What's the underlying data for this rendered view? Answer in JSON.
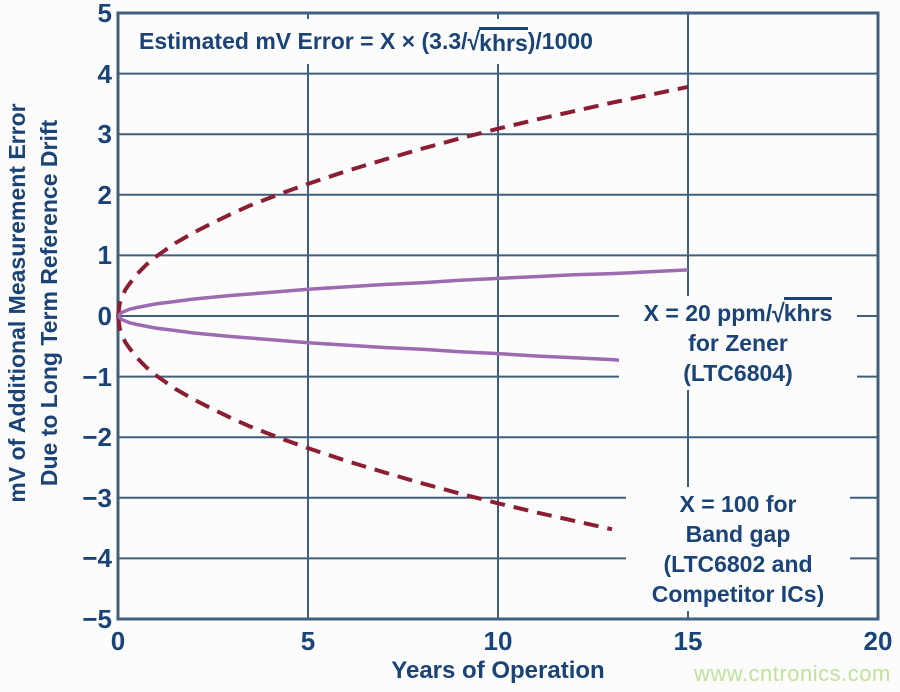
{
  "page": {
    "watermark": "www.cntronics.com"
  },
  "colors": {
    "background": "#fcfcfc",
    "text": "#1a4377",
    "grid": "#3f5f7d",
    "bandgap": "#8b1e32",
    "zener": "#9d6bb0",
    "watermark": "#c0e29a"
  },
  "chart_data": {
    "type": "line",
    "title": "Estimated mV Error = X × (3.3/√khrs)/1000",
    "formula": {
      "prefix": "Estimated mV Error = X × (3.3/",
      "sqrt": "√",
      "radicand": "khrs",
      "suffix": ")/1000"
    },
    "xlabel": "Years of Operation",
    "ylabel": [
      "mV of Additional Measurement Error",
      "Due to Long Term Reference Drift"
    ],
    "xlim": [
      0,
      20
    ],
    "ylim": [
      -5,
      5
    ],
    "grid": true,
    "legend_position": "none",
    "x_ticks": {
      "values": [
        0,
        5,
        10,
        15,
        20
      ],
      "labels": [
        "0",
        "5",
        "10",
        "15",
        "20"
      ]
    },
    "y_ticks": {
      "values": [
        5,
        4,
        3,
        2,
        1,
        0,
        -1,
        -2,
        -3,
        -4,
        -5
      ],
      "labels": [
        "5",
        "4",
        "3",
        "2",
        "1",
        "0",
        "−1",
        "−2",
        "−3",
        "−4",
        "−5"
      ]
    },
    "annotations": {
      "zener": {
        "line1_prefix": "X = 20 ppm/",
        "sqrt": "√",
        "radicand": "khrs",
        "line2": "for Zener",
        "line3": "(LTC6804)"
      },
      "bandgap": {
        "line1": "X = 100 for",
        "line2": "Band gap",
        "line3": "(LTC6802 and",
        "line4": "Competitor ICs)"
      }
    },
    "series": [
      {
        "name": "band-gap-plus-error",
        "x_value": 100,
        "style": "dashed",
        "color_key": "bandgap",
        "points": [
          [
            0,
            0
          ],
          [
            0.05,
            0.22
          ],
          [
            0.1,
            0.31
          ],
          [
            0.2,
            0.44
          ],
          [
            0.3,
            0.53
          ],
          [
            0.5,
            0.69
          ],
          [
            0.75,
            0.85
          ],
          [
            1,
            0.98
          ],
          [
            1.5,
            1.2
          ],
          [
            2,
            1.38
          ],
          [
            2.5,
            1.54
          ],
          [
            3,
            1.69
          ],
          [
            3.5,
            1.83
          ],
          [
            4,
            1.95
          ],
          [
            4.5,
            2.07
          ],
          [
            5,
            2.18
          ],
          [
            6,
            2.39
          ],
          [
            7,
            2.58
          ],
          [
            8,
            2.76
          ],
          [
            9,
            2.93
          ],
          [
            10,
            3.09
          ],
          [
            11,
            3.24
          ],
          [
            12,
            3.38
          ],
          [
            13,
            3.52
          ],
          [
            14,
            3.65
          ],
          [
            15,
            3.78
          ]
        ]
      },
      {
        "name": "band-gap-minus-error",
        "x_value": 100,
        "style": "dashed",
        "color_key": "bandgap",
        "points": [
          [
            0,
            0
          ],
          [
            0.05,
            -0.22
          ],
          [
            0.1,
            -0.31
          ],
          [
            0.2,
            -0.44
          ],
          [
            0.3,
            -0.53
          ],
          [
            0.5,
            -0.69
          ],
          [
            0.75,
            -0.85
          ],
          [
            1,
            -0.98
          ],
          [
            1.5,
            -1.2
          ],
          [
            2,
            -1.38
          ],
          [
            2.5,
            -1.54
          ],
          [
            3,
            -1.69
          ],
          [
            3.5,
            -1.83
          ],
          [
            4,
            -1.95
          ],
          [
            4.5,
            -2.07
          ],
          [
            5,
            -2.18
          ],
          [
            6,
            -2.39
          ],
          [
            7,
            -2.58
          ],
          [
            8,
            -2.76
          ],
          [
            9,
            -2.93
          ],
          [
            10,
            -3.09
          ],
          [
            11,
            -3.24
          ],
          [
            12,
            -3.38
          ],
          [
            13,
            -3.52
          ]
        ]
      },
      {
        "name": "zener-plus-error",
        "x_value": 20,
        "style": "solid",
        "color_key": "zener",
        "points": [
          [
            0,
            0
          ],
          [
            0.1,
            0.06
          ],
          [
            0.3,
            0.11
          ],
          [
            0.5,
            0.14
          ],
          [
            1,
            0.2
          ],
          [
            1.5,
            0.24
          ],
          [
            2,
            0.28
          ],
          [
            3,
            0.34
          ],
          [
            4,
            0.39
          ],
          [
            5,
            0.44
          ],
          [
            6,
            0.48
          ],
          [
            7,
            0.52
          ],
          [
            8,
            0.55
          ],
          [
            9,
            0.59
          ],
          [
            10,
            0.62
          ],
          [
            11,
            0.65
          ],
          [
            12,
            0.68
          ],
          [
            13,
            0.7
          ],
          [
            14,
            0.73
          ],
          [
            15,
            0.76
          ]
        ]
      },
      {
        "name": "zener-minus-error",
        "x_value": 20,
        "style": "solid",
        "color_key": "zener",
        "points": [
          [
            0,
            0
          ],
          [
            0.1,
            -0.06
          ],
          [
            0.3,
            -0.11
          ],
          [
            0.5,
            -0.14
          ],
          [
            1,
            -0.2
          ],
          [
            1.5,
            -0.24
          ],
          [
            2,
            -0.28
          ],
          [
            3,
            -0.34
          ],
          [
            4,
            -0.39
          ],
          [
            5,
            -0.44
          ],
          [
            6,
            -0.48
          ],
          [
            7,
            -0.52
          ],
          [
            8,
            -0.55
          ],
          [
            9,
            -0.59
          ],
          [
            10,
            -0.62
          ],
          [
            11,
            -0.66
          ],
          [
            12,
            -0.69
          ],
          [
            13,
            -0.72
          ],
          [
            13.2,
            -0.73
          ]
        ]
      }
    ]
  }
}
